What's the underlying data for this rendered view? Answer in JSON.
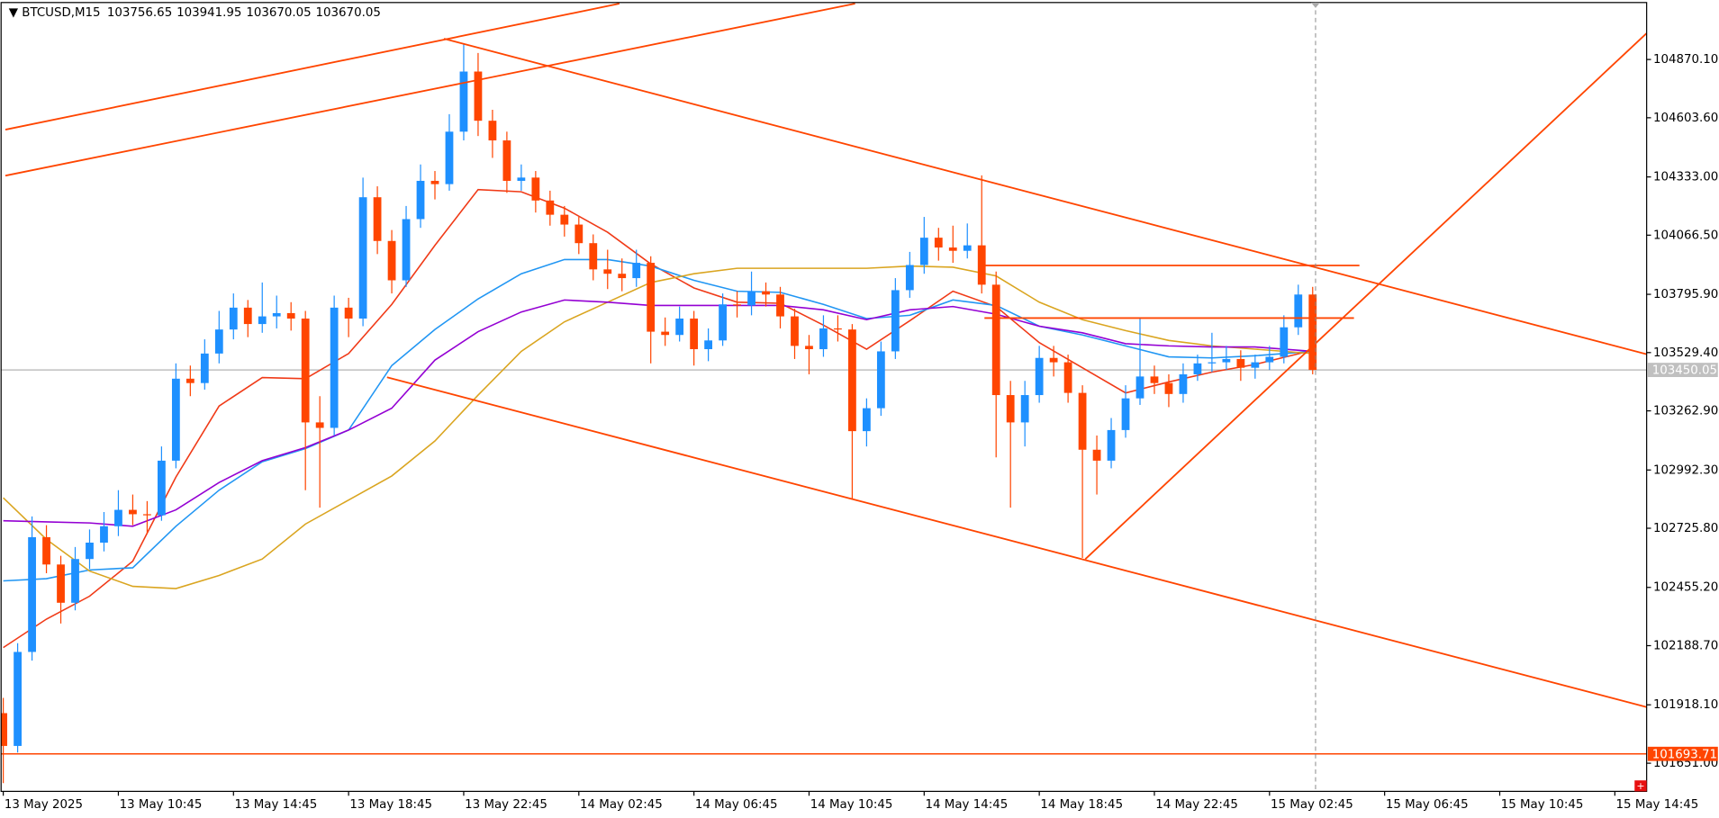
{
  "chart_data": {
    "type": "candlestick",
    "title": "BTCUSD,M15",
    "header_values": [
      103756.65,
      103941.95,
      103670.05,
      103670.05
    ],
    "up_color": "#1e90ff",
    "down_color": "#ff4500",
    "grid": false,
    "xlim": [
      -0.15,
      114.21
    ],
    "xticks": [
      {
        "value": 0,
        "label": "13 May 2025"
      },
      {
        "value": 8,
        "label": "13 May 10:45"
      },
      {
        "value": 16,
        "label": "13 May 14:45"
      },
      {
        "value": 24,
        "label": "13 May 18:45"
      },
      {
        "value": 32,
        "label": "13 May 22:45"
      },
      {
        "value": 40,
        "label": "14 May 02:45"
      },
      {
        "value": 48,
        "label": "14 May 06:45"
      },
      {
        "value": 56,
        "label": "14 May 10:45"
      },
      {
        "value": 64,
        "label": "14 May 14:45"
      },
      {
        "value": 72,
        "label": "14 May 18:45"
      },
      {
        "value": 80,
        "label": "14 May 22:45"
      },
      {
        "value": 88,
        "label": "15 May 02:45"
      },
      {
        "value": 96,
        "label": "15 May 06:45"
      },
      {
        "value": 104,
        "label": "15 May 10:45"
      },
      {
        "value": 112,
        "label": "15 May 14:45"
      }
    ],
    "ylim": [
      101522.2,
      105130.7
    ],
    "yticks": [
      {
        "value": 104870.1,
        "label": "104870.10"
      },
      {
        "value": 104603.6,
        "label": "104603.60"
      },
      {
        "value": 104333.0,
        "label": "104333.00"
      },
      {
        "value": 104066.5,
        "label": "104066.50"
      },
      {
        "value": 103795.9,
        "label": "103795.90"
      },
      {
        "value": 103529.4,
        "label": "103529.40"
      },
      {
        "value": 103262.9,
        "label": "103262.90"
      },
      {
        "value": 102992.3,
        "label": "102992.30"
      },
      {
        "value": 102725.8,
        "label": "102725.80"
      },
      {
        "value": 102455.2,
        "label": "102455.20"
      },
      {
        "value": 102188.7,
        "label": "102188.70"
      },
      {
        "value": 101918.1,
        "label": "101918.10"
      },
      {
        "value": 101651.0,
        "label": "101651.00"
      }
    ],
    "ohlc": [
      [
        101880,
        101950,
        101560,
        101730
      ],
      [
        101730,
        102200,
        101700,
        102160
      ],
      [
        102160,
        102780,
        102120,
        102685
      ],
      [
        102685,
        102740,
        102520,
        102560
      ],
      [
        102560,
        102600,
        102290,
        102385
      ],
      [
        102385,
        102640,
        102350,
        102585
      ],
      [
        102585,
        102720,
        102540,
        102660
      ],
      [
        102660,
        102800,
        102620,
        102735
      ],
      [
        102735,
        102900,
        102690,
        102810
      ],
      [
        102810,
        102880,
        102740,
        102790
      ],
      [
        102790,
        102850,
        102700,
        102785
      ],
      [
        102785,
        103100,
        102760,
        103035
      ],
      [
        103035,
        103480,
        103000,
        103410
      ],
      [
        103410,
        103470,
        103330,
        103390
      ],
      [
        103390,
        103590,
        103360,
        103525
      ],
      [
        103525,
        103720,
        103480,
        103635
      ],
      [
        103635,
        103800,
        103590,
        103735
      ],
      [
        103735,
        103770,
        103600,
        103660
      ],
      [
        103660,
        103850,
        103620,
        103695
      ],
      [
        103695,
        103790,
        103640,
        103710
      ],
      [
        103710,
        103760,
        103630,
        103685
      ],
      [
        103685,
        103720,
        102900,
        103210
      ],
      [
        103210,
        103330,
        102820,
        103185
      ],
      [
        103185,
        103790,
        103150,
        103735
      ],
      [
        103735,
        103780,
        103600,
        103685
      ],
      [
        103685,
        104330,
        103650,
        104240
      ],
      [
        104240,
        104290,
        103980,
        104040
      ],
      [
        104040,
        104090,
        103800,
        103860
      ],
      [
        103860,
        104200,
        103830,
        104140
      ],
      [
        104140,
        104390,
        104100,
        104315
      ],
      [
        104315,
        104360,
        104230,
        104300
      ],
      [
        104300,
        104620,
        104270,
        104540
      ],
      [
        104540,
        104940,
        104500,
        104815
      ],
      [
        104815,
        104900,
        104520,
        104590
      ],
      [
        104590,
        104640,
        104420,
        104500
      ],
      [
        104500,
        104540,
        104260,
        104315
      ],
      [
        104315,
        104390,
        104270,
        104330
      ],
      [
        104330,
        104360,
        104170,
        104225
      ],
      [
        104225,
        104270,
        104110,
        104160
      ],
      [
        104160,
        104200,
        104060,
        104115
      ],
      [
        104115,
        104150,
        103980,
        104030
      ],
      [
        104030,
        104070,
        103860,
        103910
      ],
      [
        103910,
        104000,
        103820,
        103890
      ],
      [
        103890,
        103960,
        103810,
        103870
      ],
      [
        103870,
        104000,
        103830,
        103940
      ],
      [
        103940,
        103970,
        103480,
        103625
      ],
      [
        103625,
        103690,
        103560,
        103610
      ],
      [
        103610,
        103740,
        103580,
        103685
      ],
      [
        103685,
        103720,
        103470,
        103545
      ],
      [
        103545,
        103640,
        103490,
        103585
      ],
      [
        103585,
        103800,
        103560,
        103750
      ],
      [
        103750,
        103810,
        103690,
        103745
      ],
      [
        103745,
        103900,
        103700,
        103810
      ],
      [
        103810,
        103850,
        103740,
        103795
      ],
      [
        103795,
        103830,
        103640,
        103695
      ],
      [
        103695,
        103730,
        103500,
        103560
      ],
      [
        103560,
        103610,
        103430,
        103545
      ],
      [
        103545,
        103700,
        103510,
        103640
      ],
      [
        103640,
        103700,
        103580,
        103635
      ],
      [
        103635,
        103660,
        102860,
        103170
      ],
      [
        103170,
        103320,
        103100,
        103275
      ],
      [
        103275,
        103580,
        103240,
        103535
      ],
      [
        103535,
        103870,
        103500,
        103815
      ],
      [
        103815,
        103990,
        103780,
        103930
      ],
      [
        103930,
        104150,
        103890,
        104055
      ],
      [
        104055,
        104100,
        103950,
        104010
      ],
      [
        104010,
        104110,
        103940,
        103995
      ],
      [
        103995,
        104120,
        103960,
        104020
      ],
      [
        104020,
        104340,
        103800,
        103840
      ],
      [
        103840,
        103900,
        103050,
        103335
      ],
      [
        103335,
        103400,
        102820,
        103210
      ],
      [
        103210,
        103400,
        103100,
        103335
      ],
      [
        103335,
        103560,
        103300,
        103505
      ],
      [
        103505,
        103560,
        103420,
        103485
      ],
      [
        103485,
        103520,
        103300,
        103345
      ],
      [
        103345,
        103380,
        102590,
        103085
      ],
      [
        103085,
        103150,
        102880,
        103035
      ],
      [
        103035,
        103230,
        103000,
        103175
      ],
      [
        103175,
        103380,
        103140,
        103320
      ],
      [
        103320,
        103690,
        103290,
        103420
      ],
      [
        103420,
        103470,
        103340,
        103390
      ],
      [
        103390,
        103430,
        103280,
        103340
      ],
      [
        103340,
        103480,
        103300,
        103430
      ],
      [
        103430,
        103520,
        103400,
        103480
      ],
      [
        103480,
        103620,
        103440,
        103485
      ],
      [
        103485,
        103560,
        103450,
        103500
      ],
      [
        103500,
        103540,
        103400,
        103460
      ],
      [
        103460,
        103520,
        103410,
        103485
      ],
      [
        103485,
        103560,
        103450,
        103510
      ],
      [
        103510,
        103700,
        103480,
        103645
      ],
      [
        103645,
        103840,
        103610,
        103795
      ],
      [
        103795,
        103830,
        103430,
        103450.05
      ]
    ],
    "indicators": [
      {
        "color": "#f03a17",
        "x": [
          0,
          3,
          6,
          9,
          12,
          15,
          18,
          21,
          24,
          27,
          30,
          33,
          36,
          39,
          42,
          45,
          48,
          51,
          54,
          57,
          60,
          63,
          66,
          69,
          72,
          75,
          78,
          81,
          84,
          87,
          91
        ],
        "values": [
          102180,
          102310,
          102415,
          102575,
          102960,
          103285,
          103415,
          103410,
          103525,
          103750,
          104020,
          104275,
          104265,
          104190,
          104080,
          103935,
          103825,
          103760,
          103755,
          103655,
          103545,
          103675,
          103810,
          103740,
          103575,
          103460,
          103345,
          103395,
          103440,
          103475,
          103540
        ]
      },
      {
        "color": "#2196f3",
        "x": [
          0,
          3,
          6,
          9,
          12,
          15,
          18,
          21,
          24,
          27,
          30,
          33,
          36,
          39,
          42,
          45,
          48,
          51,
          54,
          57,
          60,
          63,
          66,
          69,
          72,
          75,
          78,
          81,
          84,
          87,
          91
        ],
        "values": [
          102485,
          102495,
          102535,
          102545,
          102735,
          102900,
          103030,
          103090,
          103175,
          103470,
          103635,
          103775,
          103890,
          103955,
          103955,
          103925,
          103860,
          103810,
          103805,
          103750,
          103685,
          103700,
          103770,
          103745,
          103650,
          103610,
          103560,
          103510,
          103505,
          103515,
          103535
        ]
      },
      {
        "color": "#daa520",
        "x": [
          0,
          3,
          6,
          9,
          12,
          15,
          18,
          21,
          24,
          27,
          30,
          33,
          36,
          39,
          42,
          45,
          48,
          51,
          54,
          57,
          60,
          63,
          66,
          69,
          72,
          75,
          78,
          81,
          84,
          87,
          91
        ],
        "values": [
          102865,
          102675,
          102530,
          102460,
          102450,
          102510,
          102585,
          102745,
          102855,
          102965,
          103125,
          103335,
          103535,
          103670,
          103760,
          103850,
          103890,
          103915,
          103915,
          103915,
          103915,
          103925,
          103920,
          103880,
          103760,
          103680,
          103630,
          103585,
          103560,
          103545,
          103525
        ]
      },
      {
        "color": "#9400d3",
        "x": [
          0,
          3,
          6,
          9,
          12,
          15,
          18,
          21,
          24,
          27,
          30,
          33,
          36,
          39,
          42,
          45,
          48,
          51,
          54,
          57,
          60,
          63,
          66,
          69,
          72,
          75,
          78,
          81,
          84,
          87,
          91
        ],
        "values": [
          102760,
          102755,
          102750,
          102735,
          102810,
          102935,
          103035,
          103095,
          103175,
          103275,
          103495,
          103625,
          103715,
          103770,
          103760,
          103745,
          103745,
          103745,
          103745,
          103725,
          103680,
          103725,
          103740,
          103705,
          103650,
          103620,
          103570,
          103560,
          103555,
          103555,
          103535
        ]
      }
    ],
    "trendline_color": "#ff4500",
    "trendlines": [
      {
        "x": [
          0.15,
          42.82
        ],
        "values": [
          104549.3,
          105125.7
        ]
      },
      {
        "x": [
          0.15,
          59.2
        ],
        "values": [
          104338.8,
          105125.7
        ]
      },
      {
        "x": [
          30.63,
          114.21
        ],
        "values": [
          104965.3,
          103521.8
        ]
      },
      {
        "x": [
          26.67,
          114.21
        ],
        "values": [
          103416.6,
          101907.9
        ]
      },
      {
        "x": [
          75.2,
          114.21
        ],
        "values": [
          102584.6,
          104990.3
        ]
      },
      {
        "x": [
          68.19,
          94.25
        ],
        "values": [
          103927.8,
          103927.8
        ]
      },
      {
        "x": [
          68.19,
          93.87
        ],
        "values": [
          103687.2,
          103687.2
        ]
      }
    ],
    "price_lines": [
      {
        "value": 103450.05,
        "color": "#c0c0c0"
      },
      {
        "value": 101693.71,
        "color": "#ff4500"
      }
    ]
  }
}
